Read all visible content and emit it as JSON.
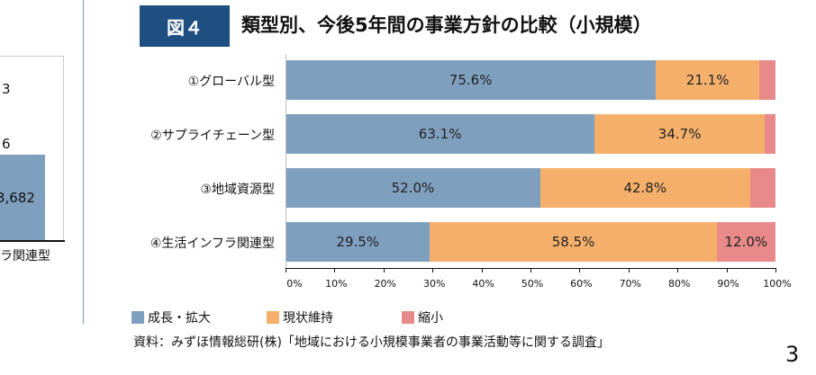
{
  "left_chart_partial": {
    "values_visible": [
      "3",
      "6",
      "3,682"
    ],
    "category_label": "ラ関連型",
    "bar_color": "#7f9fbf"
  },
  "header": {
    "figure_label": "図４",
    "title": "類型別、今後5年間の事業方針の比較（小規模）"
  },
  "chart_data": {
    "type": "bar",
    "orientation": "horizontal",
    "stacked": true,
    "title": "類型別、今後5年間の事業方針の比較（小規模）",
    "categories": [
      "①グローバル型",
      "②サプライチェーン型",
      "③地域資源型",
      "④生活インフラ関連型"
    ],
    "series": [
      {
        "name": "成長・拡大",
        "color": "#7f9fbf",
        "values": [
          75.6,
          63.1,
          52.0,
          29.5
        ],
        "labels": [
          "75.6%",
          "63.1%",
          "52.0%",
          "29.5%"
        ]
      },
      {
        "name": "現状維持",
        "color": "#f4b06b",
        "values": [
          21.1,
          34.7,
          42.8,
          58.5
        ],
        "labels": [
          "21.1%",
          "34.7%",
          "42.8%",
          "58.5%"
        ]
      },
      {
        "name": "縮小",
        "color": "#e88a8a",
        "values": [
          3.3,
          2.2,
          5.2,
          12.0
        ],
        "labels": [
          "",
          "",
          "",
          "12.0%"
        ]
      }
    ],
    "xlim": [
      0,
      100
    ],
    "x_ticks": [
      "0%",
      "10%",
      "20%",
      "30%",
      "40%",
      "50%",
      "60%",
      "70%",
      "80%",
      "90%",
      "100%"
    ],
    "legend_placement": "bottom-left",
    "grid": false
  },
  "source": "資料：みずほ情報総研(株)「地域における小規模事業者の事業活動等に関する調査」",
  "page_number": "3"
}
